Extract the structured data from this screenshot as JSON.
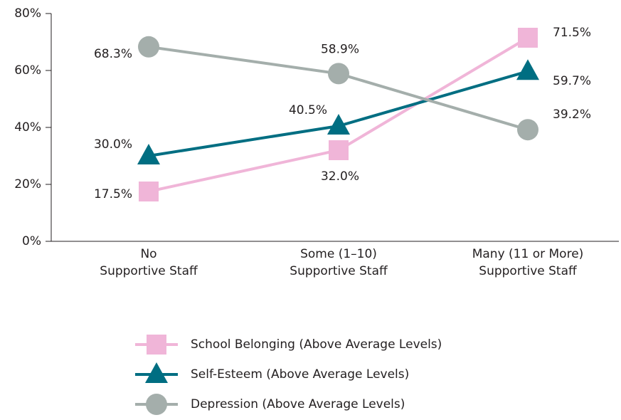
{
  "chart_data": {
    "type": "line",
    "categories": [
      "No\nSupportive Staff",
      "Some (1–10)\nSupportive Staff",
      "Many (11 or More)\nSupportive Staff"
    ],
    "series": [
      {
        "name": "School Belonging (Above Average Levels)",
        "color": "#f0b5d8",
        "marker": "square",
        "values": [
          17.5,
          32.0,
          71.5
        ],
        "value_labels": [
          "17.5%",
          "32.0%",
          "71.5%"
        ]
      },
      {
        "name": "Self-Esteem (Above Average Levels)",
        "color": "#006e82",
        "marker": "triangle",
        "values": [
          30.0,
          40.5,
          59.7
        ],
        "value_labels": [
          "30.0%",
          "40.5%",
          "59.7%"
        ]
      },
      {
        "name": "Depression (Above Average Levels)",
        "color": "#a4aeab",
        "marker": "circle",
        "values": [
          68.3,
          58.9,
          39.2
        ],
        "value_labels": [
          "68.3%",
          "58.9%",
          "39.2%"
        ]
      }
    ],
    "ylim": [
      0,
      80
    ],
    "yticks": [
      {
        "value": 0,
        "label": "0%"
      },
      {
        "value": 20,
        "label": "20%"
      },
      {
        "value": 40,
        "label": "40%"
      },
      {
        "value": 60,
        "label": "60%"
      },
      {
        "value": 80,
        "label": "80%"
      }
    ],
    "grid": false
  }
}
